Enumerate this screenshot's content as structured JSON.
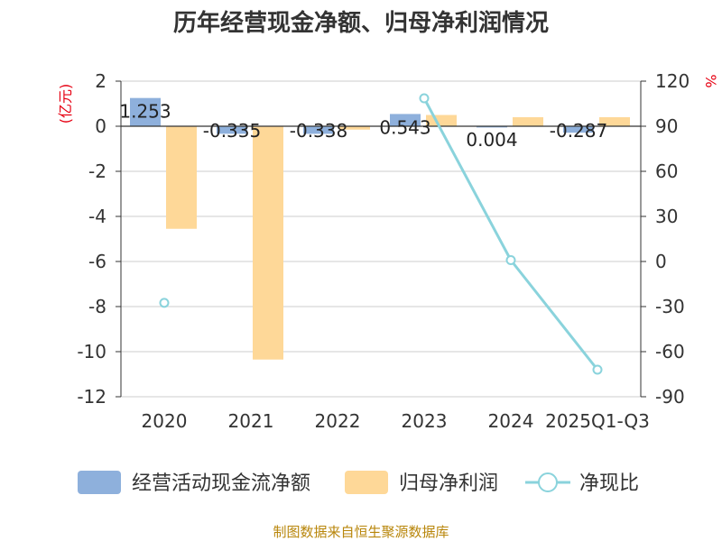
{
  "chart_data": {
    "type": "bar",
    "title": "历年经营现金净额、归母净利润情况",
    "categories": [
      "2020",
      "2021",
      "2022",
      "2023",
      "2024",
      "2025Q1-Q3"
    ],
    "series": [
      {
        "name": "经营活动现金流净额",
        "axis": "left",
        "kind": "bar",
        "values": [
          1.253,
          -0.335,
          -0.338,
          0.543,
          0.004,
          -0.287
        ],
        "labels": [
          "1.253",
          "-0.335",
          "-0.338",
          "0.543",
          "0.004",
          "-0.287"
        ],
        "color": "#8eb0dc"
      },
      {
        "name": "归母净利润",
        "axis": "left",
        "kind": "bar",
        "values": [
          -4.55,
          -10.35,
          -0.15,
          0.5,
          0.4,
          0.4
        ],
        "color": "#fed898"
      },
      {
        "name": "净现比",
        "axis": "right",
        "kind": "line",
        "values": [
          -27.5,
          null,
          null,
          108.6,
          0.9,
          -72
        ],
        "color": "#8ad3dc"
      }
    ],
    "y_left": {
      "label": "(亿元)",
      "min": -12,
      "max": 2,
      "ticks": [
        2,
        0,
        -2,
        -4,
        -6,
        -8,
        -10,
        -12
      ]
    },
    "y_right": {
      "label": "%",
      "min": -90,
      "max": 120,
      "ticks": [
        120,
        90,
        60,
        30,
        0,
        -30,
        -60,
        -90
      ]
    },
    "grid": true,
    "legend_position": "bottom"
  },
  "source": "制图数据来自恒生聚源数据库"
}
